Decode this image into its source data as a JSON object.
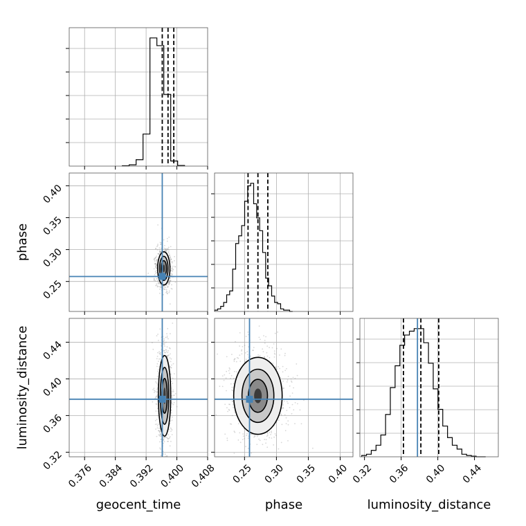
{
  "chart_data": {
    "type": "scatter",
    "subtype": "corner-plot",
    "parameters": [
      "geocent_time",
      "phase",
      "luminosity_distance"
    ],
    "axis_labels": {
      "geocent_time": "geocent_time",
      "phase": "phase",
      "luminosity_distance": "luminosity_distance"
    },
    "ranges": {
      "geocent_time": [
        0.372,
        0.408
      ],
      "phase": [
        0.203,
        0.42
      ],
      "luminosity_distance": [
        0.315,
        0.466
      ]
    },
    "ticks": {
      "geocent_time": [
        "0.376",
        "0.384",
        "0.392",
        "0.400",
        "0.408"
      ],
      "phase": [
        "0.25",
        "0.30",
        "0.35",
        "0.40"
      ],
      "luminosity_distance": [
        "0.32",
        "0.36",
        "0.40",
        "0.44"
      ]
    },
    "phase_y_ticks": [
      "0.25",
      "0.30",
      "0.35",
      "0.40"
    ],
    "luminosity_distance_y_ticks": [
      "0.32",
      "0.36",
      "0.40",
      "0.44"
    ],
    "injection": {
      "geocent_time": 0.3962,
      "phase": 0.2578,
      "luminosity_distance": 0.3778
    },
    "quantiles": {
      "geocent_time": [
        0.3962,
        0.3977,
        0.3992
      ],
      "phase": [
        0.2555,
        0.271,
        0.2865
      ],
      "luminosity_distance": [
        0.3625,
        0.3815,
        0.401
      ]
    },
    "histograms": {
      "geocent_time": {
        "bin_edges": [
          0.3858,
          0.3876,
          0.3894,
          0.3912,
          0.393,
          0.3948,
          0.3966,
          0.3984,
          0.4002,
          0.402
        ],
        "counts": [
          0.003,
          0.01,
          0.05,
          0.25,
          1.0,
          0.94,
          0.56,
          0.04,
          0.005
        ]
      },
      "phase": {
        "bin_edges": [
          0.2032,
          0.2079,
          0.2126,
          0.2173,
          0.222,
          0.2267,
          0.2314,
          0.2361,
          0.2408,
          0.2455,
          0.2502,
          0.2549,
          0.2596,
          0.2643,
          0.269,
          0.2737,
          0.2784,
          0.2831,
          0.2878,
          0.2925,
          0.2972,
          0.3019,
          0.3066,
          0.3113,
          0.316,
          0.3207,
          0.3254
        ],
        "counts": [
          0.01,
          0.02,
          0.04,
          0.07,
          0.13,
          0.16,
          0.33,
          0.53,
          0.59,
          0.67,
          0.86,
          0.98,
          1.0,
          0.84,
          0.73,
          0.63,
          0.46,
          0.26,
          0.2,
          0.12,
          0.07,
          0.06,
          0.02,
          0.01,
          0.01,
          0.0
        ]
      },
      "luminosity_distance": {
        "bin_edges": [
          0.317,
          0.3222,
          0.3274,
          0.3326,
          0.3378,
          0.343,
          0.3482,
          0.3534,
          0.3586,
          0.3638,
          0.369,
          0.3742,
          0.3794,
          0.3846,
          0.3898,
          0.395,
          0.4002,
          0.4054,
          0.4106,
          0.4158,
          0.421,
          0.4262,
          0.4314,
          0.4366,
          0.4418,
          0.447,
          0.4522
        ],
        "counts": [
          0.01,
          0.02,
          0.05,
          0.09,
          0.17,
          0.33,
          0.54,
          0.71,
          0.87,
          0.95,
          0.98,
          1.0,
          1.0,
          0.89,
          0.73,
          0.53,
          0.37,
          0.24,
          0.15,
          0.09,
          0.06,
          0.02,
          0.01,
          0.005,
          0.0,
          0.0
        ]
      }
    },
    "joint_densities": [
      {
        "x": "geocent_time",
        "y": "phase",
        "center": [
          0.3966,
          0.2705
        ],
        "contour_half_widths": [
          [
            0.0016,
            0.026
          ],
          [
            0.0011,
            0.019
          ],
          [
            0.0007,
            0.012
          ],
          [
            0.0003,
            0.006
          ]
        ]
      },
      {
        "x": "geocent_time",
        "y": "luminosity_distance",
        "center": [
          0.3968,
          0.3815
        ],
        "contour_half_widths": [
          [
            0.0016,
            0.044
          ],
          [
            0.0011,
            0.031
          ],
          [
            0.0007,
            0.019
          ],
          [
            0.0003,
            0.009
          ]
        ]
      },
      {
        "x": "phase",
        "y": "luminosity_distance",
        "center": [
          0.271,
          0.3815
        ],
        "contour_half_widths": [
          [
            0.038,
            0.042
          ],
          [
            0.025,
            0.029
          ],
          [
            0.015,
            0.018
          ],
          [
            0.006,
            0.008
          ]
        ]
      }
    ],
    "grid": true,
    "legend": false
  }
}
